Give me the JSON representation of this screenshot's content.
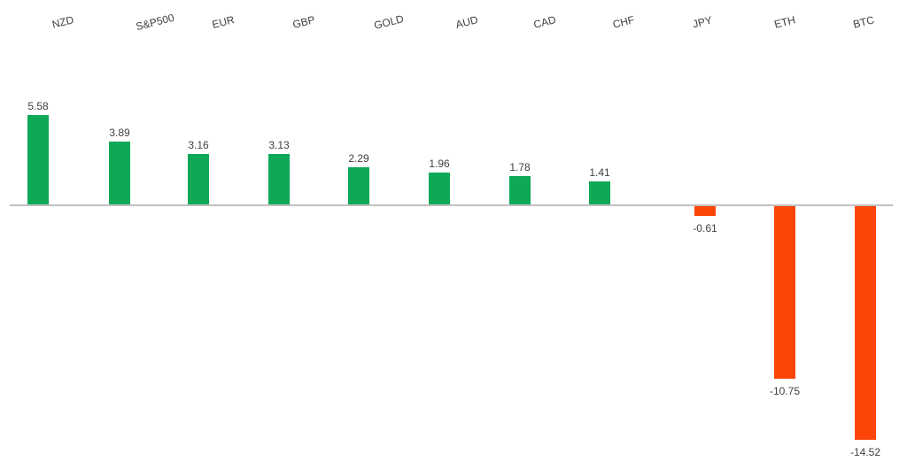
{
  "chart_data": {
    "type": "bar",
    "categories": [
      "NZD",
      "S&P500",
      "EUR",
      "GBP",
      "GOLD",
      "AUD",
      "CAD",
      "CHF",
      "JPY",
      "ETH",
      "BTC"
    ],
    "values": [
      5.58,
      3.89,
      3.16,
      3.13,
      2.29,
      1.96,
      1.78,
      1.41,
      -0.61,
      -10.75,
      -14.52
    ],
    "value_labels": [
      "5.58",
      "3.89",
      "3.16",
      "3.13",
      "2.29",
      "1.96",
      "1.78",
      "1.41",
      "-0.61",
      "-10.75",
      "-14.52"
    ],
    "title": "",
    "xlabel": "",
    "ylabel": "",
    "ylim": [
      -16,
      7
    ],
    "grid": false,
    "legend": false,
    "category_labels_position": "top",
    "category_labels_rotation_deg": -14,
    "colors": {
      "positive": "#0DA957",
      "negative": "#FB4408",
      "axis_line": "#C1C1C1",
      "label_text": "#404040"
    }
  }
}
